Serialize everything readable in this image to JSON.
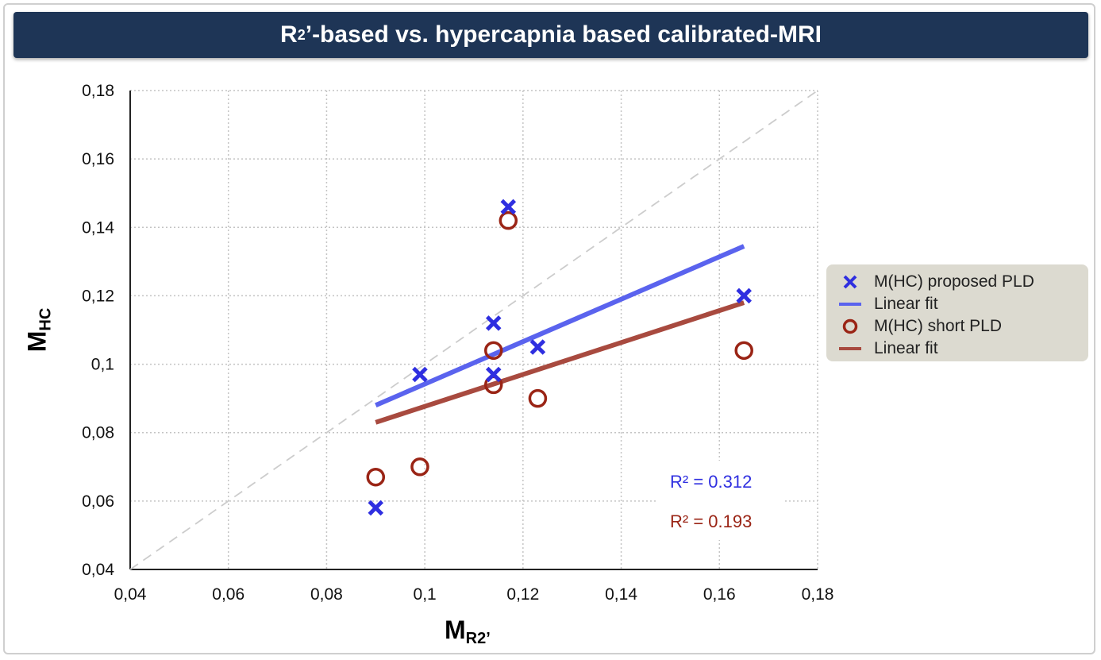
{
  "title": {
    "main": "R",
    "sub": "2",
    "rest": "’-based vs. hypercapnia based calibrated-MRI"
  },
  "axes": {
    "x_label_main": "M",
    "x_label_sub": "R2’",
    "y_label_main": "M",
    "y_label_sub": "HC"
  },
  "legend": {
    "items": [
      {
        "label": "M(HC) proposed PLD",
        "marker": "x-icon"
      },
      {
        "label": "Linear fit",
        "marker": "line-icon"
      },
      {
        "label": "M(HC) short PLD",
        "marker": "circle-icon"
      },
      {
        "label": "Linear fit",
        "marker": "line-icon"
      }
    ]
  },
  "annotations": {
    "r2_proposed": "R² = 0.312",
    "r2_short": "R² = 0.193"
  },
  "colors": {
    "proposed": "#2f2fe0",
    "proposed_fit": "#5a63ee",
    "short": "#9a2415",
    "short_fit": "#a84a3f",
    "title_bg": "#1e3556"
  },
  "chart_data": {
    "type": "scatter",
    "title": "R₂’-based vs. hypercapnia based calibrated-MRI",
    "xlabel": "MR2’",
    "ylabel": "MHC",
    "xlim": [
      0.04,
      0.18
    ],
    "ylim": [
      0.04,
      0.18
    ],
    "x_ticks": [
      "0,04",
      "0,06",
      "0,08",
      "0,1",
      "0,12",
      "0,14",
      "0,16",
      "0,18"
    ],
    "y_ticks": [
      "0,04",
      "0,06",
      "0,08",
      "0,1",
      "0,12",
      "0,14",
      "0,16",
      "0,18"
    ],
    "grid": true,
    "legend_position": "right",
    "identity_line": true,
    "series": [
      {
        "name": "M(HC) proposed PLD",
        "marker": "x",
        "points": [
          [
            0.09,
            0.058
          ],
          [
            0.099,
            0.097
          ],
          [
            0.114,
            0.112
          ],
          [
            0.114,
            0.097
          ],
          [
            0.117,
            0.146
          ],
          [
            0.123,
            0.105
          ],
          [
            0.165,
            0.12
          ]
        ]
      },
      {
        "name": "M(HC) short PLD",
        "marker": "circle",
        "points": [
          [
            0.09,
            0.067
          ],
          [
            0.099,
            0.07
          ],
          [
            0.114,
            0.104
          ],
          [
            0.114,
            0.094
          ],
          [
            0.117,
            0.142
          ],
          [
            0.123,
            0.09
          ],
          [
            0.165,
            0.104
          ]
        ]
      }
    ],
    "fits": [
      {
        "name": "Linear fit",
        "for": "M(HC) proposed PLD",
        "x": [
          0.09,
          0.165
        ],
        "y": [
          0.088,
          0.1345
        ],
        "r2": 0.312
      },
      {
        "name": "Linear fit",
        "for": "M(HC) short PLD",
        "x": [
          0.09,
          0.165
        ],
        "y": [
          0.083,
          0.118
        ],
        "r2": 0.193
      }
    ]
  }
}
